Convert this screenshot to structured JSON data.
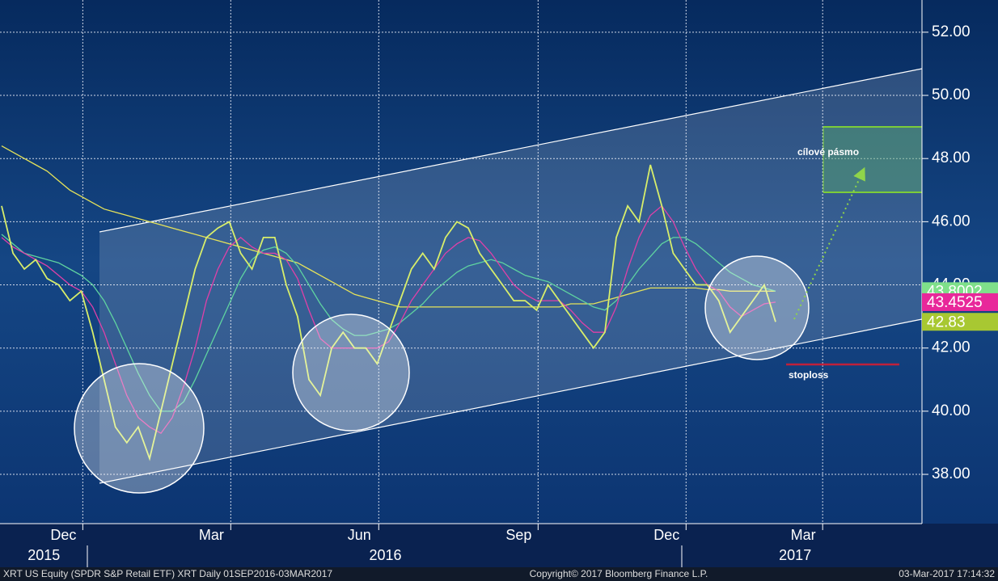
{
  "chart_data": {
    "type": "line",
    "categories": [
      null,
      null,
      null,
      null,
      null,
      "Dec",
      null,
      null,
      null,
      null,
      null,
      null,
      null,
      null,
      null,
      null,
      null,
      null,
      "Mar",
      null,
      null,
      null,
      null,
      null,
      null,
      null,
      null,
      null,
      null,
      null,
      null,
      "Jun",
      null,
      null,
      null,
      null,
      null,
      null,
      null,
      null,
      null,
      null,
      null,
      null,
      null,
      "Sep",
      null,
      null,
      null,
      null,
      null,
      null,
      null,
      null,
      null,
      null,
      null,
      null,
      "Dec",
      null,
      null,
      null,
      null,
      null,
      null,
      null,
      null,
      null,
      null,
      null,
      "Mar",
      null,
      null,
      null,
      null,
      null,
      null,
      null,
      null,
      null,
      null
    ],
    "years": [
      null,
      null,
      null,
      null,
      "2015",
      null,
      null,
      null,
      null,
      null,
      null,
      null,
      null,
      null,
      null,
      null,
      null,
      null,
      null,
      null,
      null,
      null,
      null,
      null,
      null,
      null,
      null,
      null,
      null,
      null,
      null,
      null,
      null,
      null,
      "2016",
      null,
      null,
      null,
      null,
      null,
      null,
      null,
      null,
      null,
      null,
      null,
      null,
      null,
      null,
      null,
      null,
      null,
      null,
      null,
      null,
      null,
      null,
      null,
      null,
      null,
      null,
      null,
      null,
      null,
      null,
      null,
      null,
      null,
      null,
      null,
      "2017",
      null,
      null,
      null,
      null,
      null,
      null,
      null,
      null,
      null,
      null
    ],
    "series": [
      {
        "color": "#e6e35a",
        "values": [
          48.4,
          48.2,
          48,
          47.8,
          47.6,
          47.3,
          47,
          46.8,
          46.6,
          46.4,
          46.3,
          46.2,
          46.1,
          46,
          45.9,
          45.8,
          45.7,
          45.6,
          45.5,
          45.4,
          45.3,
          45.2,
          45.1,
          45,
          44.9,
          44.8,
          44.7,
          44.5,
          44.3,
          44.1,
          43.9,
          43.7,
          43.6,
          43.5,
          43.4,
          43.3,
          43.3,
          43.3,
          43.3,
          43.3,
          43.3,
          43.3,
          43.3,
          43.3,
          43.3,
          43.3,
          43.3,
          43.3,
          43.3,
          43.3,
          43.4,
          43.4,
          43.4,
          43.5,
          43.6,
          43.7,
          43.8,
          43.9,
          43.9,
          43.9,
          43.9,
          43.9,
          43.85,
          43.85,
          43.8,
          43.8,
          43.8,
          43.8,
          43.8002,
          null,
          null,
          null,
          null,
          null,
          null,
          null,
          null,
          null,
          null,
          null,
          null
        ],
        "tag_color": "#7fe08a"
      },
      {
        "color": "#5fd3a0",
        "values": [
          45.6,
          45.3,
          45,
          44.9,
          44.8,
          44.7,
          44.5,
          44.3,
          44,
          43.5,
          42.8,
          42,
          41.2,
          40.5,
          40,
          40,
          40.3,
          41,
          41.8,
          42.6,
          43.4,
          44.2,
          44.8,
          45.1,
          45.2,
          45,
          44.6,
          44,
          43.4,
          42.9,
          42.6,
          42.4,
          42.4,
          42.5,
          42.6,
          42.8,
          43.1,
          43.4,
          43.8,
          44.1,
          44.4,
          44.6,
          44.7,
          44.8,
          44.7,
          44.5,
          44.3,
          44.2,
          44.1,
          43.9,
          43.7,
          43.5,
          43.3,
          43.2,
          43.5,
          44,
          44.5,
          44.9,
          45.3,
          45.5,
          45.5,
          45.3,
          45,
          44.7,
          44.4,
          44.2,
          44,
          43.9,
          43.8,
          null,
          null,
          null,
          null,
          null,
          null,
          null,
          null,
          null,
          null,
          null,
          null
        ]
      },
      {
        "color": "#e040a8",
        "values": [
          45.5,
          45.2,
          45,
          44.8,
          44.6,
          44.3,
          44,
          43.8,
          43.3,
          42.5,
          41.5,
          40.5,
          39.8,
          39.5,
          39.3,
          39.8,
          40.8,
          42,
          43.5,
          44.5,
          45.2,
          45.5,
          45.2,
          45,
          45,
          44.8,
          44.2,
          43.2,
          42.3,
          42,
          42,
          42,
          42,
          42,
          42.2,
          42.8,
          43.5,
          44,
          44.5,
          45,
          45.3,
          45.5,
          45.4,
          45,
          44.5,
          44,
          43.7,
          43.5,
          43.5,
          43.5,
          43.2,
          42.8,
          42.5,
          42.5,
          43.3,
          44.5,
          45.5,
          46.2,
          46.5,
          46,
          45.2,
          44.5,
          44,
          43.8,
          43.3,
          43,
          43.2,
          43.4,
          43.4525,
          null,
          null,
          null,
          null,
          null,
          null,
          null,
          null,
          null,
          null,
          null,
          null
        ],
        "tag_color": "#e8289a"
      },
      {
        "color": "#d8ee6a",
        "values": [
          46.5,
          45,
          44.5,
          44.8,
          44.2,
          44,
          43.5,
          43.8,
          42.5,
          41,
          39.5,
          39,
          39.5,
          38.5,
          40,
          41.5,
          43,
          44.5,
          45.5,
          45.8,
          46,
          45,
          44.5,
          45.5,
          45.5,
          44,
          43,
          41,
          40.5,
          42,
          42.5,
          42,
          42,
          41.5,
          42.5,
          43.5,
          44.5,
          45,
          44.5,
          45.5,
          46,
          45.8,
          45,
          44.5,
          44,
          43.5,
          43.5,
          43.2,
          44,
          43.5,
          43,
          42.5,
          42,
          42.5,
          45.5,
          46.5,
          46,
          47.8,
          46.5,
          45,
          44.5,
          44,
          44,
          43.5,
          42.5,
          43,
          43.5,
          44,
          42.83,
          null,
          null,
          null,
          null,
          null,
          null,
          null,
          null,
          null,
          null,
          null,
          null
        ],
        "tag_color": "#a8c832"
      }
    ],
    "ylim": [
      36.44,
      53.02
    ],
    "yticks": [
      {
        "value": 38,
        "label": "38.00"
      },
      {
        "value": 40,
        "label": "40.00"
      },
      {
        "value": 42,
        "label": "42.00"
      },
      {
        "value": 44,
        "label": "44.00"
      },
      {
        "value": 46,
        "label": "46.00"
      },
      {
        "value": 48,
        "label": "48.00"
      },
      {
        "value": 50,
        "label": "50.00"
      },
      {
        "value": 52,
        "label": "52.00"
      }
    ],
    "grid": true,
    "annotations": {
      "target": "cílové pásmo",
      "stoploss": "stoploss"
    },
    "footer": {
      "left": "XRT US Equity (SPDR S&P Retail ETF) XRT  Daily 01SEP2016-03MAR2017",
      "center": "Copyright© 2017 Bloomberg Finance L.P.",
      "right": "03-Mar-2017 17:14:32"
    }
  }
}
